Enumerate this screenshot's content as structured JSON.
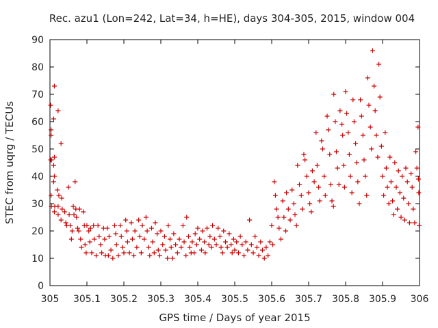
{
  "chart_data": {
    "type": "scatter",
    "title": "Rec. azu1 (Lon=242, Lat=34, h=HE), days 304-305, 2015, window 004",
    "xlabel": "GPS time / Days of year 2015",
    "ylabel": "STEC from uqrg / TECUs",
    "xlim": [
      305,
      306
    ],
    "ylim": [
      0,
      90
    ],
    "xticks": [
      "305",
      "305.1",
      "305.2",
      "305.3",
      "305.4",
      "305.5",
      "305.6",
      "305.7",
      "305.8",
      "305.9",
      "306"
    ],
    "yticks": [
      "0",
      "10",
      "20",
      "30",
      "40",
      "50",
      "60",
      "70",
      "80",
      "90"
    ],
    "grid": false,
    "marker": "plus",
    "color": "#cc0000",
    "points": [
      [
        305.002,
        66
      ],
      [
        305.003,
        57
      ],
      [
        305.003,
        55
      ],
      [
        305.002,
        46
      ],
      [
        305.004,
        46
      ],
      [
        305.003,
        33
      ],
      [
        305.004,
        29
      ],
      [
        305.012,
        73
      ],
      [
        305.01,
        61
      ],
      [
        305.012,
        47
      ],
      [
        305.01,
        44
      ],
      [
        305.012,
        40
      ],
      [
        305.01,
        38
      ],
      [
        305.013,
        29
      ],
      [
        305.012,
        27
      ],
      [
        305.022,
        64
      ],
      [
        305.02,
        35
      ],
      [
        305.024,
        33
      ],
      [
        305.022,
        29
      ],
      [
        305.022,
        26
      ],
      [
        305.03,
        52
      ],
      [
        305.032,
        32
      ],
      [
        305.033,
        28
      ],
      [
        305.03,
        24
      ],
      [
        305.04,
        27
      ],
      [
        305.043,
        23
      ],
      [
        305.045,
        22
      ],
      [
        305.05,
        36
      ],
      [
        305.052,
        26
      ],
      [
        305.055,
        22
      ],
      [
        305.058,
        17
      ],
      [
        305.06,
        20
      ],
      [
        305.063,
        29
      ],
      [
        305.065,
        26
      ],
      [
        305.068,
        38
      ],
      [
        305.07,
        28
      ],
      [
        305.072,
        25
      ],
      [
        305.075,
        21
      ],
      [
        305.078,
        20
      ],
      [
        305.08,
        28
      ],
      [
        305.083,
        17
      ],
      [
        305.085,
        14
      ],
      [
        305.09,
        27
      ],
      [
        305.093,
        22
      ],
      [
        305.095,
        15
      ],
      [
        305.098,
        12
      ],
      [
        305.1,
        22
      ],
      [
        305.105,
        20
      ],
      [
        305.108,
        16
      ],
      [
        305.11,
        21
      ],
      [
        305.113,
        12
      ],
      [
        305.118,
        22
      ],
      [
        305.12,
        17
      ],
      [
        305.125,
        11
      ],
      [
        305.13,
        22
      ],
      [
        305.133,
        18
      ],
      [
        305.137,
        15
      ],
      [
        305.14,
        12
      ],
      [
        305.145,
        21
      ],
      [
        305.148,
        17
      ],
      [
        305.15,
        11
      ],
      [
        305.155,
        21
      ],
      [
        305.158,
        11
      ],
      [
        305.16,
        18
      ],
      [
        305.165,
        13
      ],
      [
        305.17,
        10
      ],
      [
        305.175,
        22
      ],
      [
        305.178,
        19
      ],
      [
        305.18,
        15
      ],
      [
        305.185,
        11
      ],
      [
        305.19,
        22
      ],
      [
        305.193,
        18
      ],
      [
        305.197,
        14
      ],
      [
        305.2,
        12
      ],
      [
        305.205,
        24
      ],
      [
        305.208,
        20
      ],
      [
        305.21,
        16
      ],
      [
        305.215,
        12
      ],
      [
        305.22,
        23
      ],
      [
        305.223,
        17
      ],
      [
        305.227,
        11
      ],
      [
        305.23,
        20
      ],
      [
        305.235,
        14
      ],
      [
        305.24,
        24
      ],
      [
        305.243,
        18
      ],
      [
        305.247,
        12
      ],
      [
        305.25,
        22
      ],
      [
        305.255,
        17
      ],
      [
        305.26,
        25
      ],
      [
        305.263,
        20
      ],
      [
        305.267,
        14
      ],
      [
        305.27,
        11
      ],
      [
        305.275,
        21
      ],
      [
        305.278,
        16
      ],
      [
        305.282,
        12
      ],
      [
        305.285,
        23
      ],
      [
        305.29,
        19
      ],
      [
        305.293,
        13
      ],
      [
        305.297,
        11
      ],
      [
        305.3,
        20
      ],
      [
        305.305,
        15
      ],
      [
        305.31,
        18
      ],
      [
        305.313,
        13
      ],
      [
        305.318,
        10
      ],
      [
        305.32,
        22
      ],
      [
        305.325,
        17
      ],
      [
        305.328,
        14
      ],
      [
        305.332,
        10
      ],
      [
        305.335,
        19
      ],
      [
        305.34,
        15
      ],
      [
        305.345,
        12
      ],
      [
        305.35,
        17
      ],
      [
        305.355,
        14
      ],
      [
        305.36,
        22
      ],
      [
        305.363,
        16
      ],
      [
        305.368,
        11
      ],
      [
        305.37,
        25
      ],
      [
        305.375,
        18
      ],
      [
        305.378,
        14
      ],
      [
        305.382,
        12
      ],
      [
        305.385,
        16
      ],
      [
        305.39,
        12
      ],
      [
        305.393,
        19
      ],
      [
        305.397,
        15
      ],
      [
        305.4,
        21
      ],
      [
        305.405,
        17
      ],
      [
        305.41,
        13
      ],
      [
        305.413,
        20
      ],
      [
        305.418,
        16
      ],
      [
        305.42,
        12
      ],
      [
        305.425,
        21
      ],
      [
        305.43,
        15
      ],
      [
        305.433,
        18
      ],
      [
        305.437,
        14
      ],
      [
        305.44,
        22
      ],
      [
        305.445,
        17
      ],
      [
        305.45,
        15
      ],
      [
        305.455,
        21
      ],
      [
        305.46,
        18
      ],
      [
        305.463,
        14
      ],
      [
        305.467,
        12
      ],
      [
        305.47,
        20
      ],
      [
        305.475,
        16
      ],
      [
        305.48,
        14
      ],
      [
        305.485,
        19
      ],
      [
        305.49,
        15
      ],
      [
        305.493,
        12
      ],
      [
        305.497,
        17
      ],
      [
        305.5,
        13
      ],
      [
        305.505,
        16
      ],
      [
        305.51,
        12
      ],
      [
        305.515,
        18
      ],
      [
        305.52,
        15
      ],
      [
        305.525,
        11
      ],
      [
        305.53,
        16
      ],
      [
        305.535,
        13
      ],
      [
        305.54,
        24
      ],
      [
        305.545,
        15
      ],
      [
        305.55,
        12
      ],
      [
        305.555,
        18
      ],
      [
        305.56,
        14
      ],
      [
        305.565,
        11
      ],
      [
        305.57,
        16
      ],
      [
        305.575,
        13
      ],
      [
        305.58,
        10
      ],
      [
        305.585,
        14
      ],
      [
        305.59,
        11
      ],
      [
        305.595,
        16
      ],
      [
        305.6,
        22
      ],
      [
        305.603,
        15
      ],
      [
        305.607,
        38
      ],
      [
        305.61,
        33
      ],
      [
        305.613,
        28
      ],
      [
        305.617,
        25
      ],
      [
        305.62,
        21
      ],
      [
        305.625,
        17
      ],
      [
        305.63,
        31
      ],
      [
        305.633,
        25
      ],
      [
        305.638,
        20
      ],
      [
        305.64,
        34
      ],
      [
        305.645,
        28
      ],
      [
        305.65,
        24
      ],
      [
        305.655,
        35
      ],
      [
        305.66,
        30
      ],
      [
        305.663,
        26
      ],
      [
        305.667,
        22
      ],
      [
        305.67,
        44
      ],
      [
        305.675,
        37
      ],
      [
        305.68,
        33
      ],
      [
        305.683,
        28
      ],
      [
        305.687,
        48
      ],
      [
        305.69,
        46
      ],
      [
        305.695,
        40
      ],
      [
        305.7,
        34
      ],
      [
        305.703,
        30
      ],
      [
        305.707,
        27
      ],
      [
        305.71,
        42
      ],
      [
        305.715,
        38
      ],
      [
        305.72,
        56
      ],
      [
        305.723,
        44
      ],
      [
        305.727,
        36
      ],
      [
        305.73,
        31
      ],
      [
        305.735,
        53
      ],
      [
        305.738,
        50
      ],
      [
        305.742,
        40
      ],
      [
        305.745,
        33
      ],
      [
        305.75,
        62
      ],
      [
        305.753,
        57
      ],
      [
        305.757,
        48
      ],
      [
        305.76,
        37
      ],
      [
        305.763,
        31
      ],
      [
        305.767,
        29
      ],
      [
        305.768,
        70
      ],
      [
        305.772,
        60
      ],
      [
        305.775,
        49
      ],
      [
        305.778,
        43
      ],
      [
        305.782,
        37
      ],
      [
        305.785,
        64
      ],
      [
        305.79,
        59
      ],
      [
        305.792,
        55
      ],
      [
        305.795,
        44
      ],
      [
        305.797,
        36
      ],
      [
        305.8,
        71
      ],
      [
        305.803,
        63
      ],
      [
        305.807,
        56
      ],
      [
        305.81,
        48
      ],
      [
        305.813,
        40
      ],
      [
        305.817,
        34
      ],
      [
        305.82,
        68
      ],
      [
        305.823,
        60
      ],
      [
        305.827,
        52
      ],
      [
        305.83,
        45
      ],
      [
        305.833,
        38
      ],
      [
        305.837,
        30
      ],
      [
        305.84,
        68
      ],
      [
        305.843,
        62
      ],
      [
        305.847,
        55
      ],
      [
        305.85,
        46
      ],
      [
        305.853,
        40
      ],
      [
        305.857,
        33
      ],
      [
        305.86,
        76
      ],
      [
        305.863,
        66
      ],
      [
        305.867,
        58
      ],
      [
        305.87,
        50
      ],
      [
        305.873,
        86
      ],
      [
        305.877,
        73
      ],
      [
        305.88,
        64
      ],
      [
        305.883,
        55
      ],
      [
        305.887,
        47
      ],
      [
        305.89,
        81
      ],
      [
        305.893,
        69
      ],
      [
        305.897,
        51
      ],
      [
        305.9,
        40
      ],
      [
        305.903,
        33
      ],
      [
        305.907,
        56
      ],
      [
        305.91,
        43
      ],
      [
        305.913,
        36
      ],
      [
        305.917,
        30
      ],
      [
        305.92,
        47
      ],
      [
        305.923,
        38
      ],
      [
        305.927,
        31
      ],
      [
        305.93,
        26
      ],
      [
        305.933,
        45
      ],
      [
        305.937,
        36
      ],
      [
        305.94,
        28
      ],
      [
        305.943,
        42
      ],
      [
        305.947,
        34
      ],
      [
        305.95,
        25
      ],
      [
        305.953,
        40
      ],
      [
        305.957,
        32
      ],
      [
        305.96,
        24
      ],
      [
        305.963,
        43
      ],
      [
        305.967,
        38
      ],
      [
        305.97,
        30
      ],
      [
        305.973,
        23
      ],
      [
        305.977,
        41
      ],
      [
        305.98,
        36
      ],
      [
        305.983,
        28
      ],
      [
        305.987,
        23
      ],
      [
        305.99,
        49
      ],
      [
        305.993,
        43
      ],
      [
        305.996,
        58
      ],
      [
        305.997,
        39
      ],
      [
        305.998,
        34
      ],
      [
        305.999,
        22
      ]
    ]
  }
}
